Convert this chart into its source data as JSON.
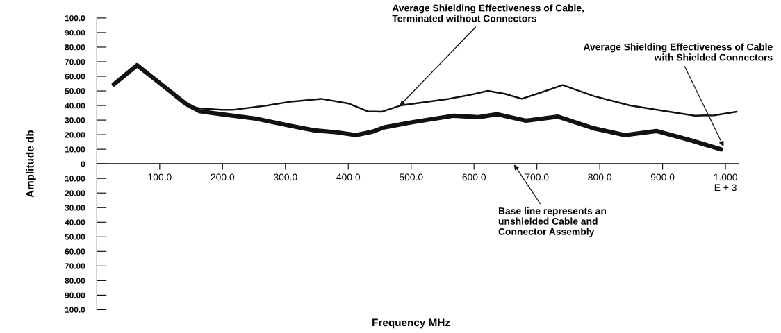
{
  "chart_data": {
    "type": "line",
    "xlabel": "Frequency MHz",
    "ylabel": "Amplitude db",
    "xlim": [
      0,
      1020
    ],
    "ylim": [
      -100,
      100
    ],
    "xticks": [
      {
        "value": 100,
        "label": "100.0"
      },
      {
        "value": 200,
        "label": "200.0"
      },
      {
        "value": 300,
        "label": "300.0"
      },
      {
        "value": 400,
        "label": "400.0"
      },
      {
        "value": 500,
        "label": "500.0"
      },
      {
        "value": 600,
        "label": "600.0"
      },
      {
        "value": 700,
        "label": "700.0"
      },
      {
        "value": 800,
        "label": "800.0"
      },
      {
        "value": 900,
        "label": "900.0"
      },
      {
        "value": 1000,
        "label": "1.000\nE + 3"
      }
    ],
    "yticks": [
      {
        "value": 100,
        "label": "100.0"
      },
      {
        "value": 90,
        "label": "90.00"
      },
      {
        "value": 80,
        "label": "80.00"
      },
      {
        "value": 70,
        "label": "70.00"
      },
      {
        "value": 60,
        "label": "60.00"
      },
      {
        "value": 50,
        "label": "50.00"
      },
      {
        "value": 40,
        "label": "40.00"
      },
      {
        "value": 30,
        "label": "30.00"
      },
      {
        "value": 20,
        "label": "20.00"
      },
      {
        "value": 10,
        "label": "10.00"
      },
      0,
      {
        "value": -10,
        "label": "10.00"
      },
      {
        "value": -20,
        "label": "20.00"
      },
      {
        "value": -30,
        "label": "30.00"
      },
      {
        "value": -40,
        "label": "40.00"
      },
      {
        "value": -50,
        "label": "50.00"
      },
      {
        "value": -60,
        "label": "60.00"
      },
      {
        "value": -70,
        "label": "70.00"
      },
      {
        "value": -80,
        "label": "80.00"
      },
      {
        "value": -90,
        "label": "90.00"
      },
      {
        "value": -100,
        "label": "100.0"
      }
    ],
    "grid": false,
    "legend": false,
    "marker": "none",
    "line_style": "solid",
    "series": [
      {
        "color": "#111111",
        "x": [
          142,
          164,
          198,
          216,
          271,
          309,
          357,
          401,
          431,
          453,
          483,
          560,
          591,
          622,
          649,
          676,
          706,
          741,
          790,
          848,
          898,
          951,
          982,
          1018
        ],
        "values": [
          40,
          38,
          37,
          37,
          40,
          42.7,
          44.6,
          41.3,
          36,
          35.7,
          40,
          44.6,
          47,
          50,
          48,
          44.6,
          48.8,
          54,
          46.5,
          40,
          36.6,
          33,
          33.3,
          35.7
        ]
      },
      {
        "color": "#111111",
        "x": [
          27,
          64,
          104,
          142,
          164,
          198,
          253,
          309,
          346,
          382,
          412,
          438,
          457,
          503,
          568,
          607,
          637,
          683,
          733,
          790,
          840,
          890,
          943,
          993
        ],
        "values": [
          54.5,
          67.6,
          54,
          41,
          36,
          34,
          31,
          26,
          23,
          21.6,
          19.7,
          22,
          25,
          28.6,
          33,
          32,
          34,
          29.6,
          32.4,
          24.4,
          19.7,
          22.5,
          16.4,
          9.9
        ]
      }
    ],
    "annotations": [
      {
        "text": "Average Shielding Effectiveness of Cable,\nTerminated without Connectors",
        "x": 482,
        "y": 40
      },
      {
        "text": "Average Shielding Effectiveness of Cable\nwith Shielded Connectors",
        "x": 997,
        "y": 12
      },
      "Base line represents an\nunshielded Cable and\nConnector Assembly"
    ]
  }
}
